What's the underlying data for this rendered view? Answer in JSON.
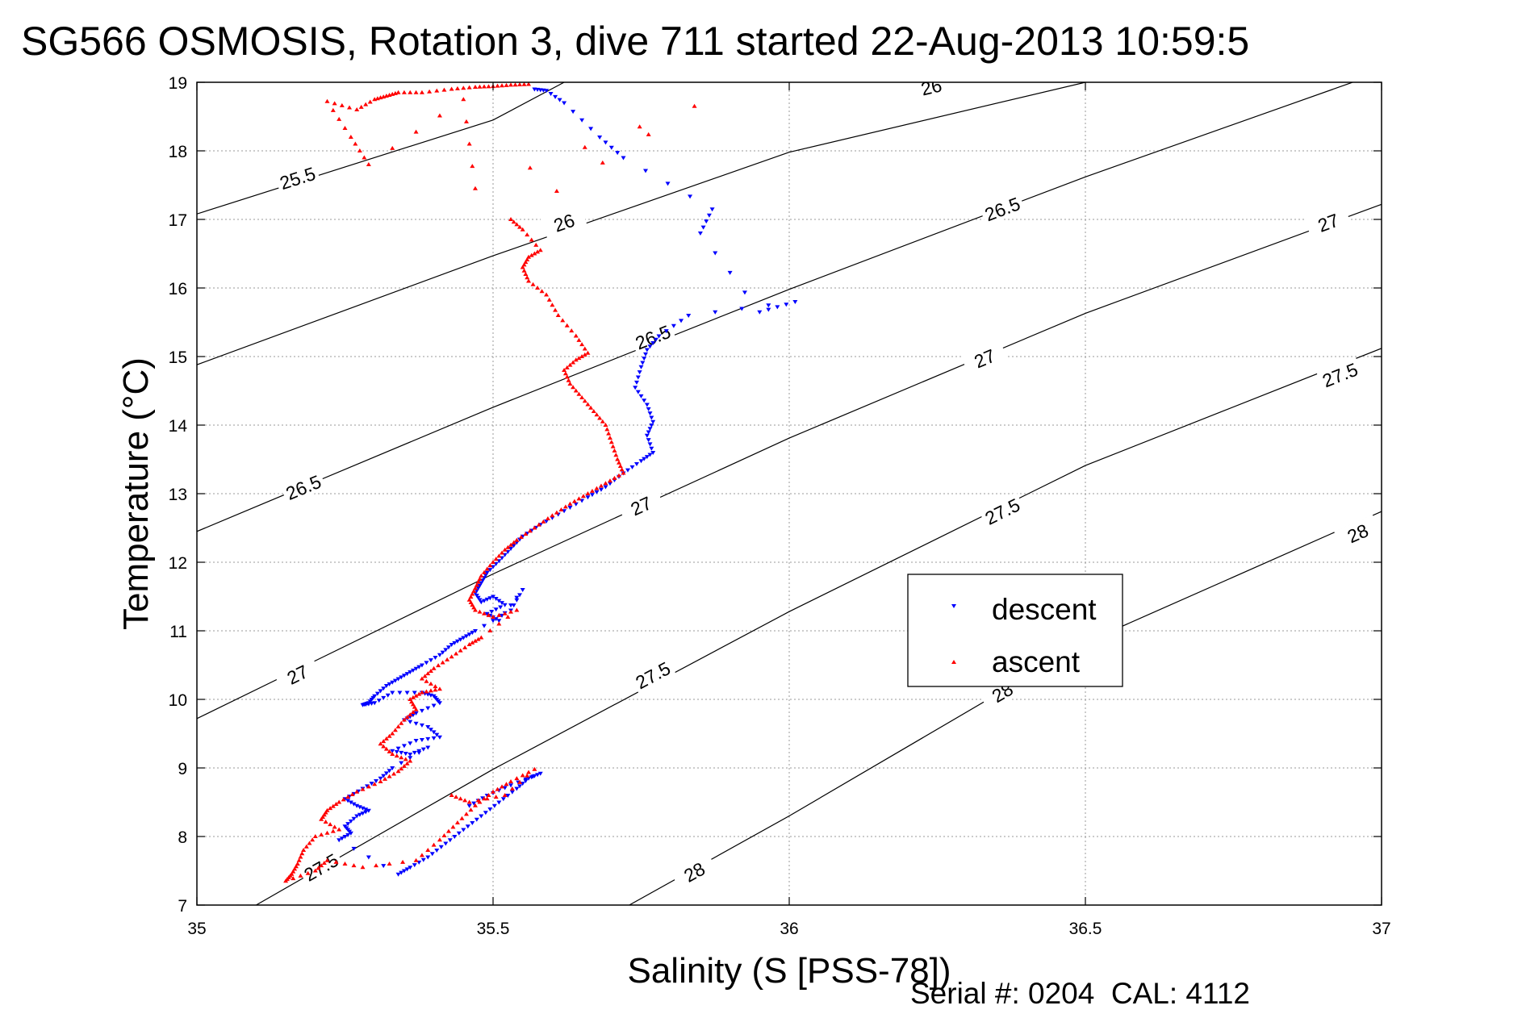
{
  "chart_data": {
    "type": "scatter",
    "title": "SG566 OSMOSIS, Rotation 3, dive 711 started 22-Aug-2013 10:59:5",
    "xlabel": "Salinity (S [PSS-78])",
    "ylabel": "Temperature (°C)",
    "xlim": [
      35,
      37
    ],
    "ylim": [
      7,
      19
    ],
    "xticks": [
      "35",
      "35.5",
      "36",
      "36.5",
      "37"
    ],
    "yticks": [
      "7",
      "8",
      "9",
      "10",
      "11",
      "12",
      "13",
      "14",
      "15",
      "16",
      "17",
      "18",
      "19"
    ],
    "grid": true,
    "legend": {
      "placement": "lower-center-right",
      "entries": [
        "descent",
        "ascent"
      ]
    },
    "footer": "Serial #: 0204  CAL: 4112",
    "colors": {
      "descent": "#0000ff",
      "ascent": "#ff0000",
      "contour": "#000000",
      "grid": "#999999"
    },
    "contours": [
      {
        "label": "25.5",
        "points": [
          [
            35.0,
            17.08
          ],
          [
            35.5,
            18.45
          ],
          [
            35.62,
            19.0
          ]
        ],
        "label_at": [
          [
            35.17,
            17.6
          ]
        ]
      },
      {
        "label": "26",
        "points": [
          [
            35.0,
            14.88
          ],
          [
            35.5,
            16.47
          ],
          [
            36.0,
            17.98
          ],
          [
            36.5,
            19.0
          ]
        ],
        "label_at": [
          [
            35.62,
            16.95
          ],
          [
            36.24,
            18.93
          ]
        ]
      },
      {
        "label": "26.5",
        "points": [
          [
            35.0,
            12.45
          ],
          [
            35.5,
            14.26
          ],
          [
            36.0,
            15.98
          ],
          [
            36.5,
            17.62
          ],
          [
            37.0,
            19.15
          ]
        ],
        "label_at": [
          [
            35.18,
            13.09
          ],
          [
            35.77,
            15.28
          ],
          [
            36.36,
            17.15
          ]
        ]
      },
      {
        "label": "27",
        "points": [
          [
            35.0,
            9.72
          ],
          [
            35.5,
            11.83
          ],
          [
            36.0,
            13.81
          ],
          [
            36.5,
            15.63
          ],
          [
            37.0,
            17.22
          ]
        ],
        "label_at": [
          [
            35.17,
            10.36
          ],
          [
            35.75,
            12.82
          ],
          [
            36.33,
            14.97
          ],
          [
            36.91,
            16.95
          ]
        ]
      },
      {
        "label": "27.5",
        "points": [
          [
            35.1,
            7.0
          ],
          [
            35.5,
            8.98
          ],
          [
            36.0,
            11.28
          ],
          [
            36.5,
            13.41
          ],
          [
            37.0,
            15.12
          ]
        ],
        "label_at": [
          [
            35.21,
            7.55
          ],
          [
            35.77,
            10.35
          ],
          [
            36.36,
            12.74
          ],
          [
            36.93,
            14.73
          ]
        ]
      },
      {
        "label": "28",
        "points": [
          [
            35.73,
            7.0
          ],
          [
            36.0,
            8.3
          ],
          [
            36.5,
            10.83
          ],
          [
            37.0,
            12.74
          ]
        ],
        "label_at": [
          [
            35.84,
            7.48
          ],
          [
            36.36,
            10.1
          ],
          [
            36.96,
            12.42
          ]
        ]
      }
    ],
    "series": [
      {
        "name": "descent",
        "marker": "triangle-down",
        "points": [
          [
            35.57,
            18.9
          ],
          [
            35.59,
            18.88
          ],
          [
            35.62,
            18.7
          ],
          [
            35.68,
            18.2
          ],
          [
            35.72,
            17.9
          ],
          [
            35.87,
            17.15
          ],
          [
            35.85,
            16.8
          ],
          [
            35.95,
            15.65
          ],
          [
            36.01,
            15.8
          ],
          [
            35.83,
            15.6
          ],
          [
            35.78,
            15.3
          ],
          [
            35.76,
            15.1
          ],
          [
            35.75,
            14.85
          ],
          [
            35.74,
            14.55
          ],
          [
            35.76,
            14.3
          ],
          [
            35.77,
            14.05
          ],
          [
            35.76,
            13.85
          ],
          [
            35.77,
            13.6
          ],
          [
            35.75,
            13.48
          ],
          [
            35.72,
            13.3
          ],
          [
            35.69,
            13.1
          ],
          [
            35.66,
            12.95
          ],
          [
            35.62,
            12.75
          ],
          [
            35.58,
            12.55
          ],
          [
            35.55,
            12.38
          ],
          [
            35.53,
            12.2
          ],
          [
            35.51,
            12.02
          ],
          [
            35.49,
            11.85
          ],
          [
            35.48,
            11.7
          ],
          [
            35.47,
            11.55
          ],
          [
            35.48,
            11.42
          ],
          [
            35.5,
            11.5
          ],
          [
            35.52,
            11.38
          ],
          [
            35.49,
            11.25
          ],
          [
            35.51,
            11.15
          ],
          [
            35.55,
            11.6
          ],
          [
            35.53,
            11.3
          ],
          [
            35.47,
            11.0
          ],
          [
            35.45,
            10.9
          ],
          [
            35.43,
            10.8
          ],
          [
            35.41,
            10.65
          ],
          [
            35.38,
            10.5
          ],
          [
            35.36,
            10.4
          ],
          [
            35.34,
            10.3
          ],
          [
            35.32,
            10.2
          ],
          [
            35.3,
            10.05
          ],
          [
            35.29,
            9.95
          ],
          [
            35.28,
            9.92
          ],
          [
            35.3,
            9.95
          ],
          [
            35.33,
            10.1
          ],
          [
            35.38,
            10.1
          ],
          [
            35.4,
            10.05
          ],
          [
            35.41,
            9.95
          ],
          [
            35.37,
            9.8
          ],
          [
            35.35,
            9.7
          ],
          [
            35.39,
            9.6
          ],
          [
            35.41,
            9.45
          ],
          [
            35.37,
            9.4
          ],
          [
            35.33,
            9.25
          ],
          [
            35.36,
            9.2
          ],
          [
            35.39,
            9.3
          ],
          [
            35.33,
            9.0
          ],
          [
            35.31,
            8.85
          ],
          [
            35.28,
            8.7
          ],
          [
            35.25,
            8.55
          ],
          [
            35.27,
            8.45
          ],
          [
            35.29,
            8.38
          ],
          [
            35.27,
            8.3
          ],
          [
            35.25,
            8.15
          ],
          [
            35.26,
            8.05
          ],
          [
            35.24,
            7.95
          ],
          [
            35.34,
            7.45
          ],
          [
            35.36,
            7.55
          ],
          [
            35.39,
            7.7
          ],
          [
            35.42,
            7.9
          ],
          [
            35.45,
            8.1
          ],
          [
            35.48,
            8.3
          ],
          [
            35.51,
            8.5
          ],
          [
            35.54,
            8.7
          ],
          [
            35.56,
            8.85
          ],
          [
            35.58,
            8.92
          ],
          [
            35.53,
            8.75
          ],
          [
            35.49,
            8.6
          ],
          [
            35.46,
            8.45
          ]
        ]
      },
      {
        "name": "ascent",
        "marker": "triangle-up",
        "points": [
          [
            35.56,
            18.97
          ],
          [
            35.53,
            18.96
          ],
          [
            35.5,
            18.94
          ],
          [
            35.47,
            18.93
          ],
          [
            35.43,
            18.9
          ],
          [
            35.38,
            18.85
          ],
          [
            35.34,
            18.85
          ],
          [
            35.32,
            18.8
          ],
          [
            35.3,
            18.75
          ],
          [
            35.27,
            18.6
          ],
          [
            35.22,
            18.72
          ],
          [
            35.26,
            18.2
          ],
          [
            35.29,
            17.8
          ],
          [
            35.45,
            18.75
          ],
          [
            35.47,
            17.45
          ],
          [
            35.84,
            18.65
          ],
          [
            35.53,
            17.0
          ],
          [
            35.55,
            16.85
          ],
          [
            35.58,
            16.55
          ],
          [
            35.56,
            16.45
          ],
          [
            35.55,
            16.3
          ],
          [
            35.56,
            16.1
          ],
          [
            35.59,
            15.9
          ],
          [
            35.61,
            15.6
          ],
          [
            35.64,
            15.3
          ],
          [
            35.66,
            15.05
          ],
          [
            35.64,
            14.95
          ],
          [
            35.62,
            14.8
          ],
          [
            35.63,
            14.6
          ],
          [
            35.65,
            14.4
          ],
          [
            35.67,
            14.2
          ],
          [
            35.69,
            14.0
          ],
          [
            35.7,
            13.75
          ],
          [
            35.71,
            13.5
          ],
          [
            35.72,
            13.3
          ],
          [
            35.69,
            13.15
          ],
          [
            35.66,
            13.0
          ],
          [
            35.63,
            12.85
          ],
          [
            35.6,
            12.68
          ],
          [
            35.57,
            12.5
          ],
          [
            35.54,
            12.32
          ],
          [
            35.52,
            12.18
          ],
          [
            35.5,
            12.0
          ],
          [
            35.48,
            11.8
          ],
          [
            35.47,
            11.62
          ],
          [
            35.46,
            11.45
          ],
          [
            35.47,
            11.3
          ],
          [
            35.5,
            11.2
          ],
          [
            35.54,
            11.3
          ],
          [
            35.48,
            10.9
          ],
          [
            35.46,
            10.8
          ],
          [
            35.43,
            10.62
          ],
          [
            35.4,
            10.45
          ],
          [
            35.38,
            10.3
          ],
          [
            35.41,
            10.15
          ],
          [
            35.38,
            10.1
          ],
          [
            35.36,
            10.0
          ],
          [
            35.37,
            9.85
          ],
          [
            35.35,
            9.7
          ],
          [
            35.33,
            9.5
          ],
          [
            35.31,
            9.35
          ],
          [
            35.33,
            9.2
          ],
          [
            35.36,
            9.1
          ],
          [
            35.34,
            8.95
          ],
          [
            35.31,
            8.8
          ],
          [
            35.27,
            8.65
          ],
          [
            35.24,
            8.5
          ],
          [
            35.22,
            8.38
          ],
          [
            35.21,
            8.25
          ],
          [
            35.24,
            8.1
          ],
          [
            35.2,
            8.0
          ],
          [
            35.18,
            7.8
          ],
          [
            35.17,
            7.6
          ],
          [
            35.16,
            7.45
          ],
          [
            35.15,
            7.35
          ],
          [
            35.2,
            7.5
          ],
          [
            35.22,
            7.65
          ],
          [
            35.28,
            7.55
          ],
          [
            35.37,
            7.65
          ],
          [
            35.41,
            7.95
          ],
          [
            35.44,
            8.2
          ],
          [
            35.47,
            8.45
          ],
          [
            35.5,
            8.65
          ],
          [
            35.53,
            8.8
          ],
          [
            35.57,
            8.98
          ],
          [
            35.52,
            8.6
          ],
          [
            35.46,
            8.5
          ],
          [
            35.43,
            8.6
          ]
        ]
      }
    ]
  }
}
